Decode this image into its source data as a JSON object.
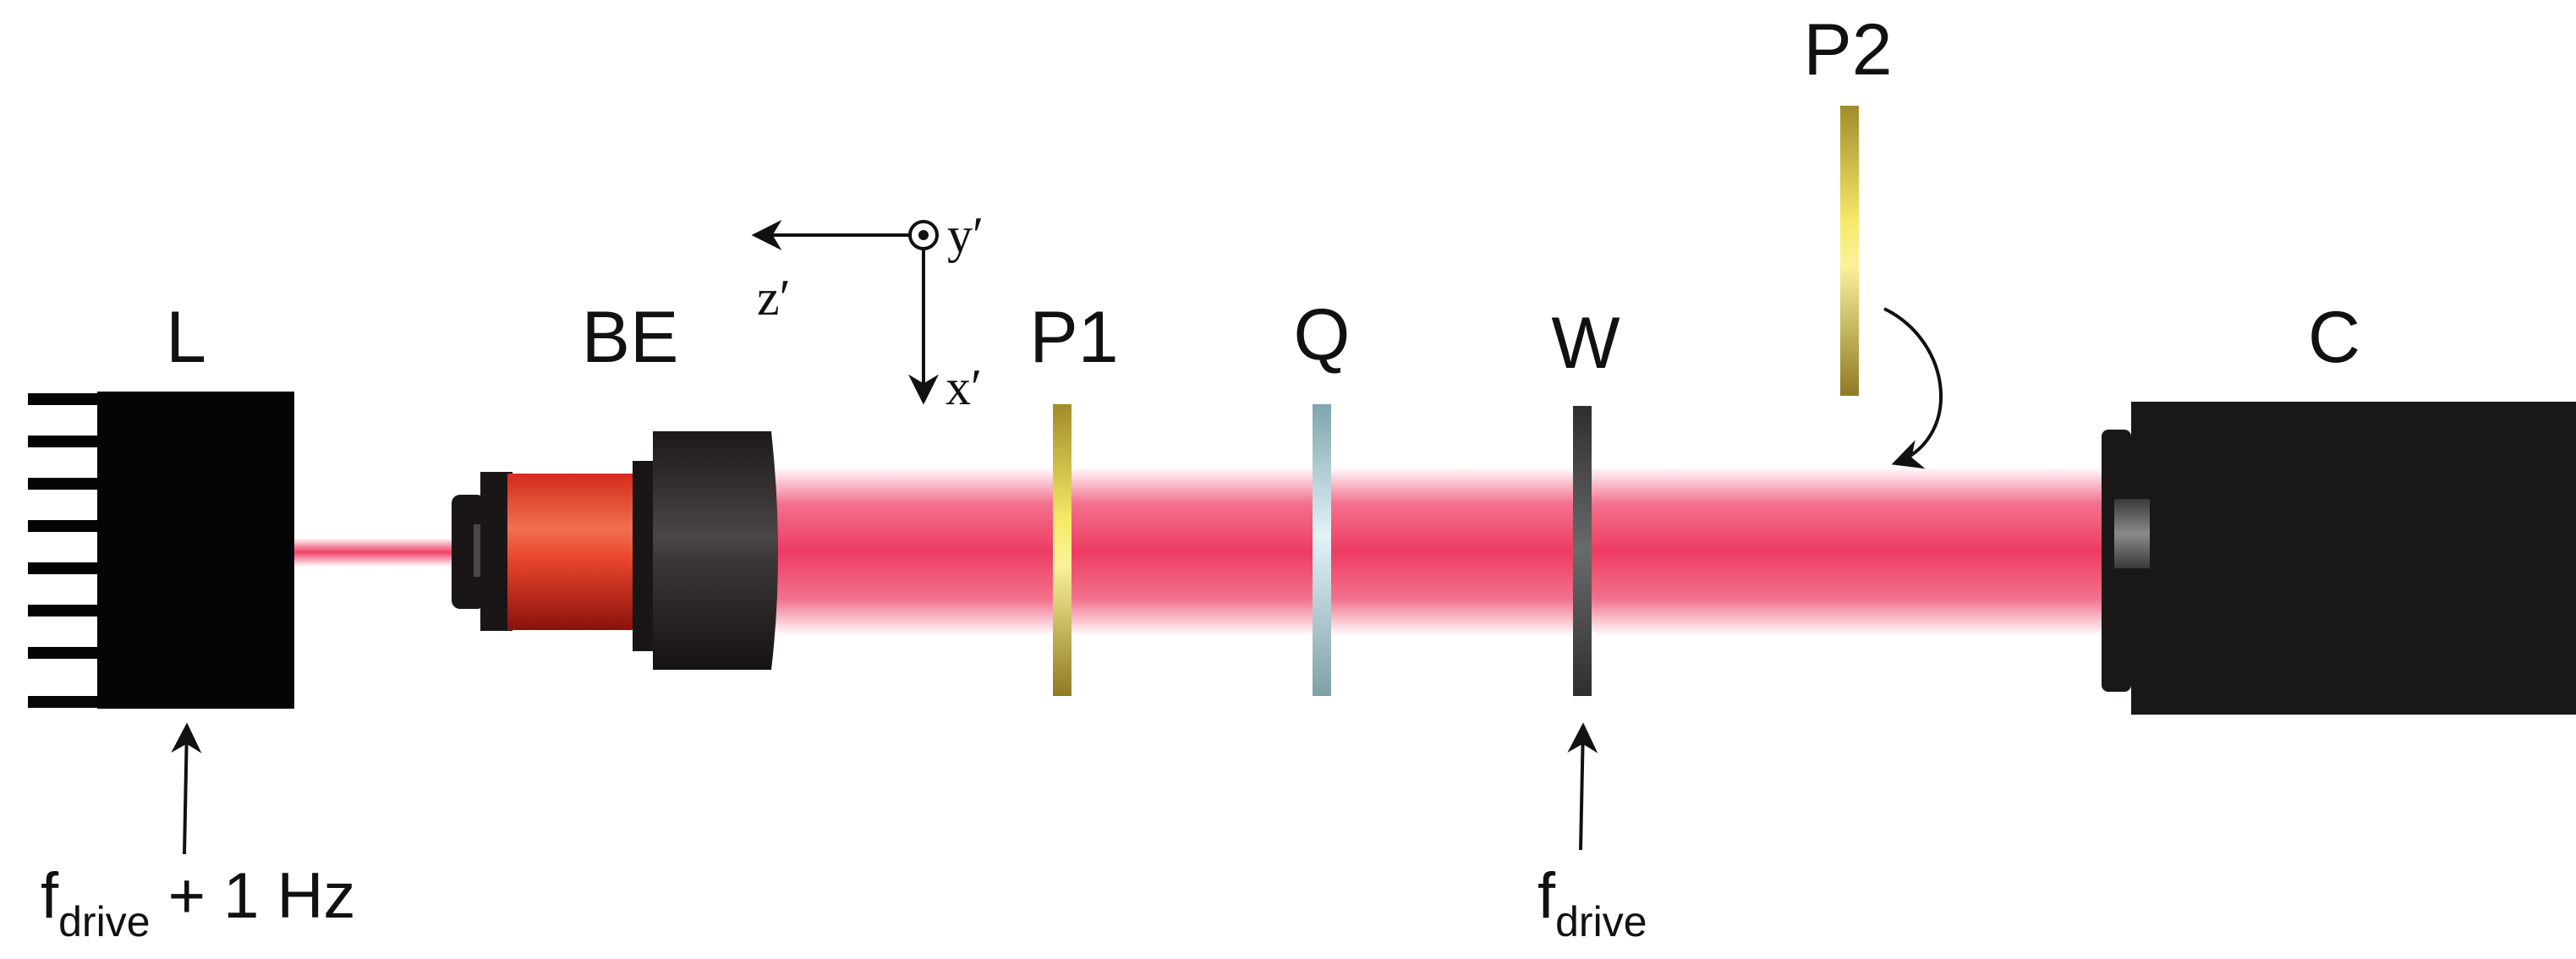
{
  "labels": {
    "laser": "L",
    "beam_expander": "BE",
    "polarizer1": "P1",
    "quarter_wave_plate": "Q",
    "waveplate": "W",
    "polarizer2": "P2",
    "camera": "C"
  },
  "axes": {
    "z": "z′",
    "y": "y′",
    "x": "x′"
  },
  "annotations": {
    "laser_drive_main": "f",
    "laser_drive_sub": "drive",
    "laser_drive_extra": " + 1 Hz",
    "waveplate_drive_main": "f",
    "waveplate_drive_sub": "drive"
  },
  "colors": {
    "beam": "#ee4166",
    "laser_body": "#050505",
    "expander_red": "#c8201a",
    "polarizer_gold": "#d9c43a",
    "quarter_plate": "#a9cdd6",
    "waveplate_gray": "#4a4a4a",
    "camera_body": "#1a1717"
  }
}
